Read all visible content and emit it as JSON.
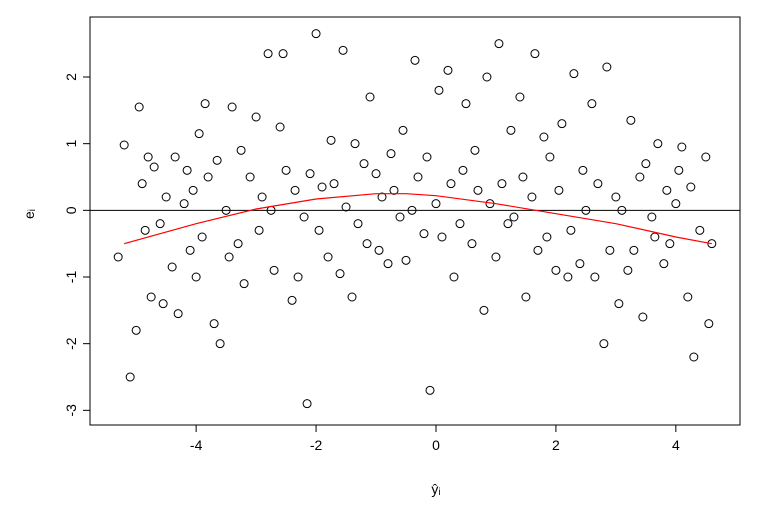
{
  "chart_data": {
    "type": "scatter",
    "xlabel": "ŷᵢ",
    "ylabel": "eᵢ",
    "xlim": [
      -5.77,
      5.07
    ],
    "ylim": [
      -3.22,
      2.9
    ],
    "xticks": [
      -4,
      -2,
      0,
      2,
      4
    ],
    "yticks": [
      -3,
      -2,
      -1,
      0,
      1,
      2
    ],
    "hline": 0,
    "color": "#000000",
    "x": [
      -5.3,
      -5.2,
      -5.1,
      -5.0,
      -4.95,
      -4.9,
      -4.85,
      -4.8,
      -4.75,
      -4.7,
      -4.6,
      -4.55,
      -4.5,
      -4.4,
      -4.35,
      -4.3,
      -4.2,
      -4.15,
      -4.1,
      -4.05,
      -4.0,
      -3.95,
      -3.9,
      -3.85,
      -3.8,
      -3.7,
      -3.65,
      -3.6,
      -3.5,
      -3.45,
      -3.4,
      -3.3,
      -3.25,
      -3.2,
      -3.1,
      -3.0,
      -2.95,
      -2.9,
      -2.8,
      -2.75,
      -2.7,
      -2.6,
      -2.55,
      -2.5,
      -2.4,
      -2.35,
      -2.3,
      -2.2,
      -2.15,
      -2.1,
      -2.0,
      -1.95,
      -1.9,
      -1.8,
      -1.75,
      -1.7,
      -1.6,
      -1.55,
      -1.5,
      -1.4,
      -1.35,
      -1.3,
      -1.2,
      -1.15,
      -1.1,
      -1.0,
      -0.95,
      -0.9,
      -0.8,
      -0.75,
      -0.7,
      -0.6,
      -0.55,
      -0.5,
      -0.4,
      -0.35,
      -0.3,
      -0.2,
      -0.15,
      -0.1,
      0.0,
      0.05,
      0.1,
      0.2,
      0.25,
      0.3,
      0.4,
      0.45,
      0.5,
      0.6,
      0.65,
      0.7,
      0.8,
      0.85,
      0.9,
      1.0,
      1.05,
      1.1,
      1.2,
      1.25,
      1.3,
      1.4,
      1.45,
      1.5,
      1.6,
      1.65,
      1.7,
      1.8,
      1.85,
      1.9,
      2.0,
      2.05,
      2.1,
      2.2,
      2.25,
      2.3,
      2.4,
      2.45,
      2.5,
      2.6,
      2.65,
      2.7,
      2.8,
      2.85,
      2.9,
      3.0,
      3.05,
      3.1,
      3.2,
      3.25,
      3.3,
      3.4,
      3.45,
      3.5,
      3.6,
      3.65,
      3.7,
      3.8,
      3.85,
      3.9,
      4.0,
      4.05,
      4.1,
      4.2,
      4.25,
      4.3,
      4.4,
      4.5,
      4.55,
      4.6
    ],
    "values": [
      -0.7,
      0.98,
      -2.5,
      -1.8,
      1.55,
      0.4,
      -0.3,
      0.8,
      -1.3,
      0.65,
      -0.2,
      -1.4,
      0.2,
      -0.85,
      0.8,
      -1.55,
      0.1,
      0.6,
      -0.6,
      0.3,
      -1.0,
      1.15,
      -0.4,
      1.6,
      0.5,
      -1.7,
      0.75,
      -2.0,
      0.0,
      -0.7,
      1.55,
      -0.5,
      0.9,
      -1.1,
      0.5,
      1.4,
      -0.3,
      0.2,
      2.35,
      0.0,
      -0.9,
      1.25,
      2.35,
      0.6,
      -1.35,
      0.3,
      -1.0,
      -0.1,
      -2.9,
      0.55,
      2.65,
      -0.3,
      0.35,
      -0.7,
      1.05,
      0.4,
      -0.95,
      2.4,
      0.05,
      -1.3,
      1.0,
      -0.2,
      0.7,
      -0.5,
      1.7,
      0.55,
      -0.6,
      0.2,
      -0.8,
      0.85,
      0.3,
      -0.1,
      1.2,
      -0.75,
      0.0,
      2.25,
      0.5,
      -0.35,
      0.8,
      -2.7,
      0.1,
      1.8,
      -0.4,
      2.1,
      0.4,
      -1.0,
      -0.2,
      0.6,
      1.6,
      -0.5,
      0.9,
      0.3,
      -1.5,
      2.0,
      0.1,
      -0.7,
      2.5,
      0.4,
      -0.2,
      1.2,
      -0.1,
      1.7,
      0.5,
      -1.3,
      0.2,
      2.35,
      -0.6,
      1.1,
      -0.4,
      0.8,
      -0.9,
      0.3,
      1.3,
      -1.0,
      -0.3,
      2.05,
      -0.8,
      0.6,
      0.0,
      1.6,
      -1.0,
      0.4,
      -2.0,
      2.15,
      -0.6,
      0.2,
      -1.4,
      0.0,
      -0.9,
      1.35,
      -0.6,
      0.5,
      -1.6,
      0.7,
      -0.1,
      -0.4,
      1.0,
      -0.8,
      0.3,
      -0.5,
      0.1,
      0.6,
      0.95,
      -1.3,
      0.35,
      -2.2,
      -0.3,
      0.8,
      -1.7,
      -0.5
    ],
    "smooth": {
      "color": "#ff0000",
      "x": [
        -5.2,
        -4.0,
        -3.0,
        -2.0,
        -1.0,
        -0.5,
        0.0,
        1.0,
        2.0,
        3.0,
        4.0,
        4.6
      ],
      "values": [
        -0.5,
        -0.2,
        0.02,
        0.17,
        0.25,
        0.25,
        0.22,
        0.1,
        -0.05,
        -0.2,
        -0.4,
        -0.5
      ]
    }
  }
}
